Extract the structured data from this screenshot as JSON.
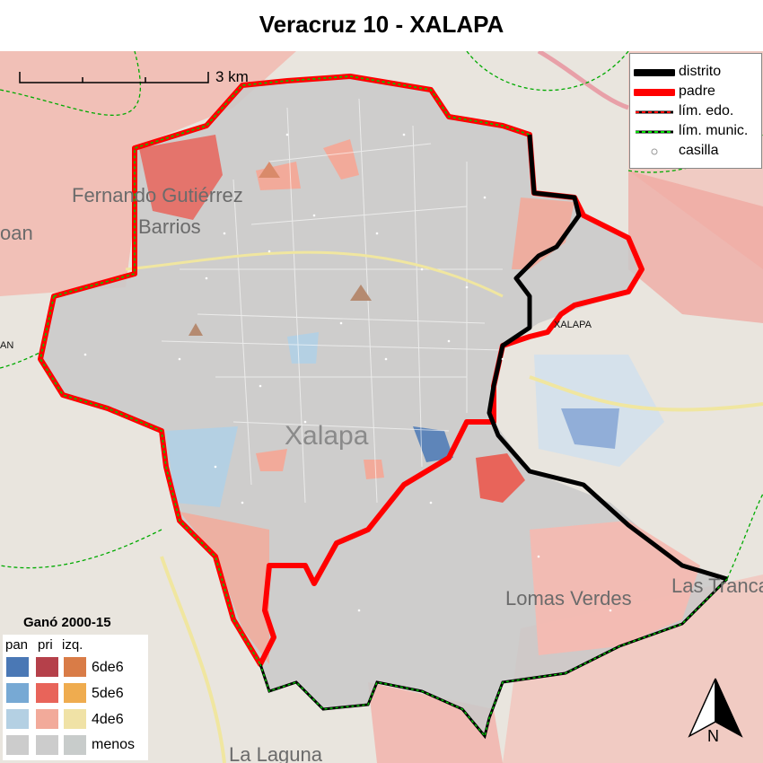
{
  "title": "Veracruz 10 - XALAPA",
  "scale": {
    "label": "3 km"
  },
  "legend": {
    "items": [
      {
        "label": "distrito",
        "color": "#000000",
        "style": "thick-line"
      },
      {
        "label": "padre",
        "color": "#ff0000",
        "style": "thick-line"
      },
      {
        "label": "lím. edo.",
        "color": "#ff0000",
        "style": "dashed-line"
      },
      {
        "label": "lím. munic.",
        "color": "#00cc00",
        "style": "dashed-line"
      },
      {
        "label": "casilla",
        "color": "#999999",
        "style": "circle"
      }
    ]
  },
  "winner_key": {
    "title": "Ganó 2000-15",
    "parties": [
      "pan",
      "pri",
      "izq."
    ],
    "levels": [
      "6de6",
      "5de6",
      "4de6",
      "menos"
    ],
    "colors": {
      "pan": [
        "#4a78b5",
        "#77a9d4",
        "#b4d0e3",
        "#cccccc"
      ],
      "pri": [
        "#b5404a",
        "#e8645a",
        "#f2aa9a",
        "#cccccc"
      ],
      "izq": [
        "#d97c47",
        "#efac4f",
        "#f0e2a6",
        "#c8cccb"
      ]
    }
  },
  "places": {
    "city": "Xalapa",
    "fernando": "Fernando Gutiérrez",
    "barrios": "Barrios",
    "lomas": "Lomas Verdes",
    "laguna": "La Laguna",
    "lastrancas": "Las Trancas",
    "district_label": "XALAPA",
    "left_a": "oan",
    "left_b": "AN"
  },
  "north": {
    "label": "N"
  }
}
